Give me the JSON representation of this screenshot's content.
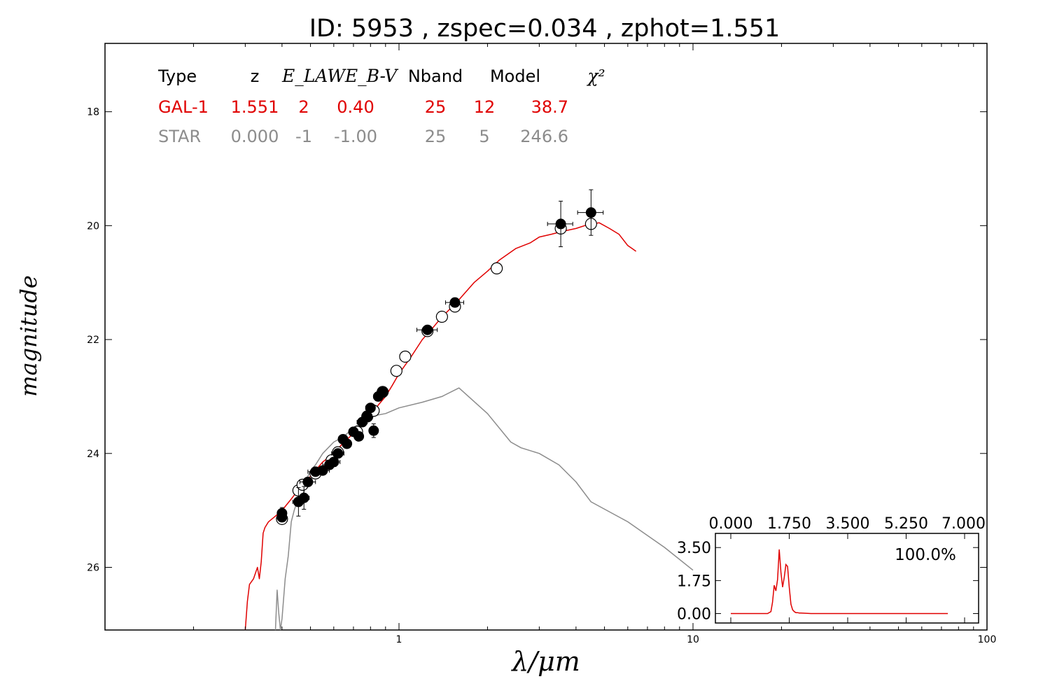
{
  "title": "ID:  5953  , zspec=0.034 , zphot=1.551",
  "colors": {
    "galaxy": "#e00000",
    "star": "#8c8c8c",
    "axis": "#000000",
    "photometry": "#000000"
  },
  "table": {
    "headers": [
      "Type",
      "z",
      "E_LAW",
      "E_B-V",
      "Nband",
      "Model",
      "χ²"
    ],
    "rows": [
      {
        "name": "gal",
        "color": "#e00000",
        "cells": [
          "GAL-1",
          "1.551",
          "2",
          "0.40",
          "25",
          "12",
          "38.7"
        ]
      },
      {
        "name": "star",
        "color": "#8c8c8c",
        "cells": [
          "STAR",
          "0.000",
          "-1",
          "-1.00",
          "25",
          "5",
          "246.6"
        ]
      }
    ]
  },
  "chart_data": [
    {
      "type": "line",
      "xlabel": "λ/μm",
      "ylabel": "magnitude",
      "xscale": "log",
      "xlim": [
        0.1,
        100
      ],
      "ylim": [
        27.1,
        16.8
      ],
      "yaxis_inverted": true,
      "xticks": [
        {
          "value": 1,
          "label": "1"
        },
        {
          "value": 10,
          "label": "10"
        },
        {
          "value": 100,
          "label": "100"
        }
      ],
      "yticks": [
        {
          "value": 18,
          "label": "18"
        },
        {
          "value": 20,
          "label": "20"
        },
        {
          "value": 22,
          "label": "22"
        },
        {
          "value": 24,
          "label": "24"
        },
        {
          "value": 26,
          "label": "26"
        }
      ],
      "series": [
        {
          "kind": "galaxy-template",
          "color": "#e00000",
          "x": [
            0.3,
            0.305,
            0.31,
            0.32,
            0.33,
            0.335,
            0.34,
            0.345,
            0.35,
            0.36,
            0.38,
            0.4,
            0.43,
            0.46,
            0.5,
            0.55,
            0.6,
            0.65,
            0.7,
            0.75,
            0.8,
            0.85,
            0.9,
            0.95,
            1.0,
            1.1,
            1.2,
            1.3,
            1.4,
            1.5,
            1.6,
            1.8,
            2.0,
            2.2,
            2.5,
            2.8,
            3.0,
            3.3,
            3.6,
            4.0,
            4.4,
            4.8,
            5.2,
            5.6,
            6.0,
            6.2,
            6.4
          ],
          "y": [
            27.1,
            26.6,
            26.3,
            26.2,
            26.0,
            26.2,
            25.9,
            25.4,
            25.3,
            25.2,
            25.1,
            25.0,
            24.8,
            24.6,
            24.4,
            24.15,
            24.0,
            23.8,
            23.65,
            23.5,
            23.35,
            23.15,
            23.0,
            22.8,
            22.6,
            22.3,
            22.0,
            21.8,
            21.6,
            21.45,
            21.3,
            21.0,
            20.8,
            20.6,
            20.4,
            20.3,
            20.2,
            20.15,
            20.1,
            20.05,
            19.98,
            19.95,
            20.05,
            20.15,
            20.35,
            20.4,
            20.45
          ]
        },
        {
          "kind": "star-template",
          "color": "#8c8c8c",
          "x": [
            0.38,
            0.385,
            0.39,
            0.395,
            0.4,
            0.41,
            0.42,
            0.43,
            0.44,
            0.45,
            0.46,
            0.47,
            0.48,
            0.5,
            0.52,
            0.55,
            0.6,
            0.65,
            0.7,
            0.75,
            0.8,
            0.9,
            1.0,
            1.2,
            1.4,
            1.6,
            2.0,
            2.4,
            2.6,
            3.0,
            3.5,
            4.0,
            4.5,
            6.0,
            8.0,
            10.0
          ],
          "y": [
            27.1,
            26.4,
            26.8,
            27.1,
            26.9,
            26.2,
            25.8,
            25.2,
            25.0,
            24.85,
            24.6,
            24.8,
            24.5,
            24.3,
            24.2,
            24.0,
            23.8,
            23.7,
            23.55,
            23.45,
            23.35,
            23.3,
            23.2,
            23.1,
            23.0,
            22.85,
            23.3,
            23.8,
            23.9,
            24.0,
            24.2,
            24.5,
            24.85,
            25.2,
            25.65,
            26.05
          ]
        }
      ],
      "points": {
        "observed": [
          {
            "x": 0.4,
            "y": 25.05,
            "yerr": 0.1,
            "xerr": 0.01
          },
          {
            "x": 0.4,
            "y": 25.12,
            "yerr": 0.08,
            "xerr": 0.01
          },
          {
            "x": 0.455,
            "y": 24.85,
            "yerr": 0.25,
            "xerr": 0.02
          },
          {
            "x": 0.475,
            "y": 24.78,
            "yerr": 0.2,
            "xerr": 0.02
          },
          {
            "x": 0.49,
            "y": 24.5,
            "yerr": 0.08,
            "xerr": 0.03
          },
          {
            "x": 0.52,
            "y": 24.32,
            "yerr": 0.07,
            "xerr": 0.03
          },
          {
            "x": 0.55,
            "y": 24.3,
            "yerr": 0.07,
            "xerr": 0.03
          },
          {
            "x": 0.58,
            "y": 24.2,
            "yerr": 0.06,
            "xerr": 0.03
          },
          {
            "x": 0.6,
            "y": 24.15,
            "yerr": 0.06,
            "xerr": 0.03
          },
          {
            "x": 0.62,
            "y": 24.0,
            "yerr": 0.05,
            "xerr": 0.03
          },
          {
            "x": 0.645,
            "y": 23.75,
            "yerr": 0.05,
            "xerr": 0.02
          },
          {
            "x": 0.665,
            "y": 23.83,
            "yerr": 0.05,
            "xerr": 0.02
          },
          {
            "x": 0.7,
            "y": 23.62,
            "yerr": 0.05,
            "xerr": 0.02
          },
          {
            "x": 0.73,
            "y": 23.7,
            "yerr": 0.05,
            "xerr": 0.02
          },
          {
            "x": 0.75,
            "y": 23.45,
            "yerr": 0.05,
            "xerr": 0.03
          },
          {
            "x": 0.78,
            "y": 23.35,
            "yerr": 0.05,
            "xerr": 0.03
          },
          {
            "x": 0.8,
            "y": 23.2,
            "yerr": 0.05,
            "xerr": 0.03
          },
          {
            "x": 0.82,
            "y": 23.6,
            "yerr": 0.12,
            "xerr": 0.02
          },
          {
            "x": 0.85,
            "y": 23.0,
            "yerr": 0.05,
            "xerr": 0.03
          },
          {
            "x": 0.88,
            "y": 22.92,
            "yerr": 0.05,
            "xerr": 0.03
          },
          {
            "x": 1.25,
            "y": 21.83,
            "yerr": 0.06,
            "xerr": 0.1
          },
          {
            "x": 1.55,
            "y": 21.35,
            "yerr": 0.06,
            "xerr": 0.11
          },
          {
            "x": 3.55,
            "y": 19.97,
            "yerr": 0.4,
            "xerr": 0.35
          },
          {
            "x": 4.5,
            "y": 19.77,
            "yerr": 0.4,
            "xerr": 0.45
          }
        ],
        "model": [
          {
            "x": 0.4,
            "y": 25.15
          },
          {
            "x": 0.455,
            "y": 24.65
          },
          {
            "x": 0.47,
            "y": 24.55
          },
          {
            "x": 0.52,
            "y": 24.35
          },
          {
            "x": 0.59,
            "y": 24.12
          },
          {
            "x": 0.62,
            "y": 23.98
          },
          {
            "x": 0.72,
            "y": 23.62
          },
          {
            "x": 0.78,
            "y": 23.35
          },
          {
            "x": 0.82,
            "y": 23.25
          },
          {
            "x": 0.88,
            "y": 22.92
          },
          {
            "x": 0.98,
            "y": 22.55
          },
          {
            "x": 1.05,
            "y": 22.3
          },
          {
            "x": 1.25,
            "y": 21.85
          },
          {
            "x": 1.4,
            "y": 21.6
          },
          {
            "x": 1.55,
            "y": 21.42
          },
          {
            "x": 2.15,
            "y": 20.75
          },
          {
            "x": 3.55,
            "y": 20.05
          },
          {
            "x": 4.5,
            "y": 19.97
          }
        ]
      }
    },
    {
      "type": "line",
      "name": "inset-pdf",
      "xlim": [
        0,
        7
      ],
      "ylim": [
        -0.5,
        4.25
      ],
      "xticks": [
        {
          "value": 0,
          "label": "0.000"
        },
        {
          "value": 1.75,
          "label": "1.750"
        },
        {
          "value": 3.5,
          "label": "3.500"
        },
        {
          "value": 5.25,
          "label": "5.250"
        },
        {
          "value": 7,
          "label": "7.000"
        }
      ],
      "yticks": [
        {
          "value": 0,
          "label": "0.00"
        },
        {
          "value": 1.75,
          "label": "1.75"
        },
        {
          "value": 3.5,
          "label": "3.50"
        }
      ],
      "annotation": "100.0%",
      "series": [
        {
          "color": "#e00000",
          "x": [
            0.0,
            1.1,
            1.2,
            1.25,
            1.3,
            1.35,
            1.4,
            1.45,
            1.5,
            1.55,
            1.6,
            1.65,
            1.7,
            1.75,
            1.8,
            1.85,
            1.9,
            1.95,
            2.0,
            2.05,
            2.1,
            2.2,
            2.4,
            3.0,
            6.5
          ],
          "y": [
            0.0,
            0.0,
            0.1,
            0.6,
            1.5,
            1.2,
            1.8,
            3.4,
            2.2,
            1.4,
            1.9,
            2.6,
            2.5,
            1.4,
            0.5,
            0.2,
            0.1,
            0.05,
            0.05,
            0.03,
            0.03,
            0.02,
            0.0,
            0.0,
            0.0
          ]
        }
      ]
    }
  ]
}
